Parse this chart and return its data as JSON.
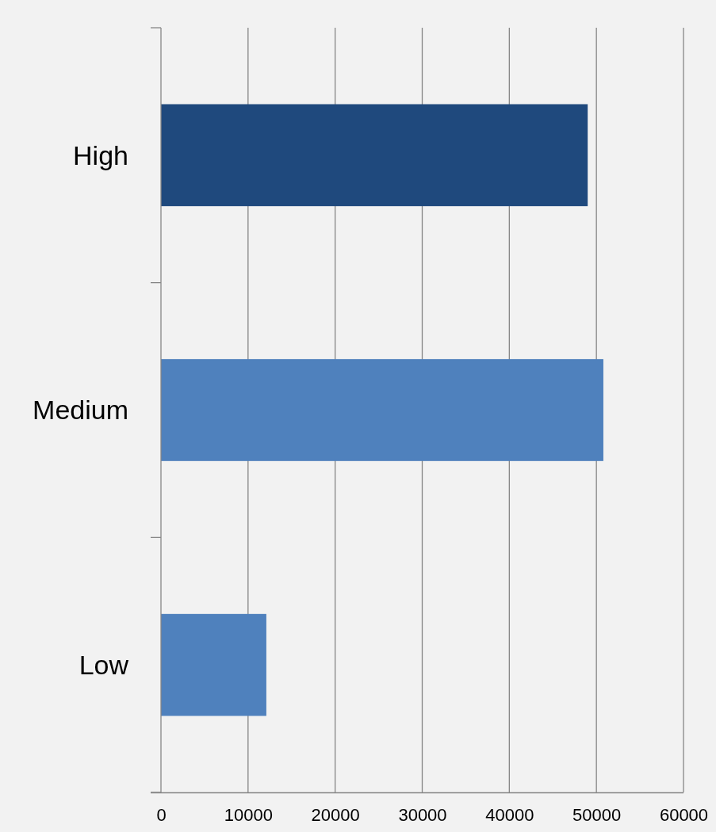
{
  "chart_data": {
    "type": "bar",
    "orientation": "horizontal",
    "categories": [
      "High",
      "Medium",
      "Low"
    ],
    "values": [
      49000,
      50800,
      12100
    ],
    "colors": [
      "#1f497d",
      "#4f81bd",
      "#4f81bd"
    ],
    "xlim": [
      0,
      60000
    ],
    "xticks": [
      0,
      10000,
      20000,
      30000,
      40000,
      50000,
      60000
    ],
    "grid": "x"
  }
}
